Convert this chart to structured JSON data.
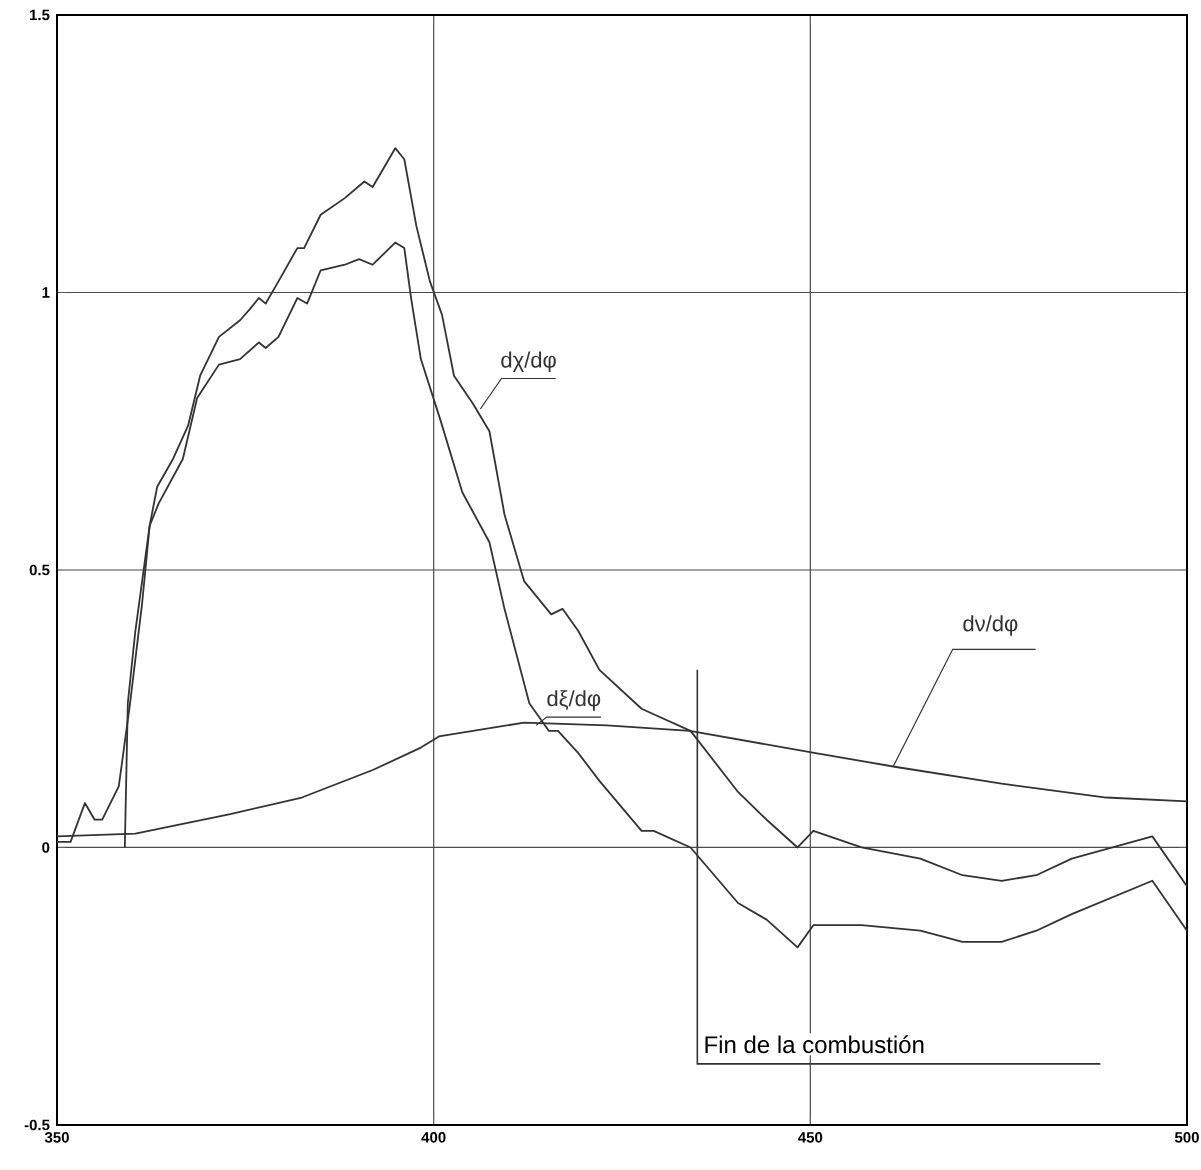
{
  "chart_data": {
    "type": "line",
    "xlim": [
      350,
      500
    ],
    "ylim": [
      -0.5,
      1.5
    ],
    "xticks": [
      350,
      400,
      450,
      500
    ],
    "yticks": [
      -0.5,
      0,
      0.5,
      1,
      1.5
    ],
    "grid": true,
    "legend": false,
    "marker": "none",
    "line_style": "solid",
    "series": [
      {
        "name": "dχ/dφ",
        "color": "#333333",
        "x": [
          350,
          351.8,
          353.7,
          355,
          356,
          358.2,
          359.7,
          361.3,
          362.3,
          363.3,
          365.4,
          367.4,
          369,
          371.5,
          374.3,
          375.6,
          376.8,
          377.7,
          379.4,
          381.9,
          382.8,
          385,
          388.2,
          390.8,
          391.9,
          394.9,
          396.1,
          397.7,
          399.5,
          401.1,
          402.7,
          405.2,
          407.4,
          409.4,
          412,
          415.6,
          417.1,
          419.2,
          422,
          427.6,
          429.2,
          434.1,
          440.4,
          444.2,
          448.3,
          450.4,
          456.8,
          464.6,
          470.2,
          475.4,
          480,
          484.7,
          495.4,
          500
        ],
        "values": [
          0.01,
          0.01,
          0.08,
          0.05,
          0.05,
          0.11,
          0.26,
          0.44,
          0.58,
          0.65,
          0.7,
          0.76,
          0.85,
          0.92,
          0.95,
          0.97,
          0.99,
          0.98,
          1.02,
          1.08,
          1.08,
          1.14,
          1.17,
          1.2,
          1.19,
          1.26,
          1.24,
          1.12,
          1.02,
          0.96,
          0.85,
          0.8,
          0.75,
          0.6,
          0.48,
          0.42,
          0.43,
          0.39,
          0.32,
          0.25,
          0.24,
          0.21,
          0.1,
          0.05,
          0.0,
          0.03,
          0.0,
          -0.02,
          -0.05,
          -0.06,
          -0.05,
          -0.02,
          0.02,
          -0.07
        ]
      },
      {
        "name": "dξ/dφ",
        "color": "#333333",
        "x": [
          359,
          359.4,
          360.4,
          362.3,
          363.5,
          366.7,
          368.6,
          371.5,
          374.3,
          376.8,
          377.7,
          379.4,
          381.9,
          383.2,
          385,
          388.2,
          390.1,
          391.9,
          394.9,
          396.1,
          397,
          398.3,
          400.9,
          403.8,
          407.4,
          409.4,
          412.7,
          415.3,
          416.5,
          419.2,
          422,
          427.6,
          429.2,
          434.1,
          440.4,
          444.2,
          448.3,
          450.4,
          456.8,
          464.6,
          470.2,
          475.4,
          480,
          484.7,
          495.4,
          500
        ],
        "values": [
          0.0,
          0.26,
          0.39,
          0.58,
          0.62,
          0.7,
          0.81,
          0.87,
          0.88,
          0.91,
          0.9,
          0.92,
          0.99,
          0.98,
          1.04,
          1.05,
          1.06,
          1.05,
          1.09,
          1.08,
          0.99,
          0.88,
          0.77,
          0.64,
          0.55,
          0.43,
          0.26,
          0.21,
          0.21,
          0.17,
          0.12,
          0.03,
          0.03,
          0.0,
          -0.1,
          -0.13,
          -0.18,
          -0.14,
          -0.14,
          -0.15,
          -0.17,
          -0.17,
          -0.15,
          -0.12,
          -0.06,
          -0.15
        ]
      },
      {
        "name": "dν/dφ",
        "color": "#333333",
        "x": [
          350,
          360.4,
          373,
          382.5,
          392,
          398.3,
          400.7,
          412,
          423,
          434,
          450.7,
          461.4,
          475.4,
          489.3,
          500
        ],
        "values": [
          0.02,
          0.025,
          0.06,
          0.09,
          0.14,
          0.18,
          0.2,
          0.225,
          0.22,
          0.21,
          0.17,
          0.145,
          0.115,
          0.09,
          0.083
        ]
      }
    ],
    "ref_lines": [
      {
        "axis": "x",
        "value": 435,
        "label": "Fin de la combustión",
        "color": "#333333"
      }
    ]
  }
}
